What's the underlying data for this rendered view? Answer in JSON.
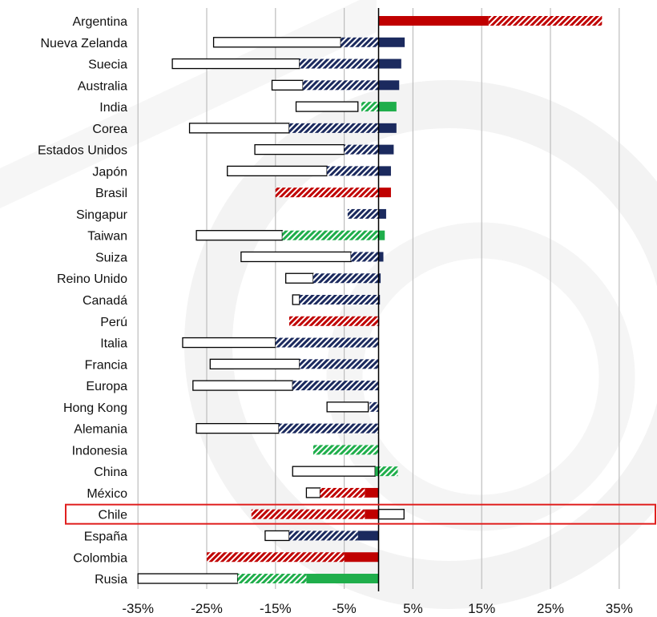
{
  "chart_data": {
    "type": "bar",
    "orientation": "horizontal",
    "title": "",
    "xlabel": "",
    "ylabel": "",
    "xlim": [
      -35,
      39
    ],
    "tick_labels": [
      "-35%",
      "-25%",
      "-15%",
      "-5%",
      "5%",
      "15%",
      "25%",
      "35%"
    ],
    "grid": true,
    "legend": "none",
    "highlighted_category": "Chile",
    "colors": {
      "navy": "#1b2a5e",
      "red": "#c00000",
      "green": "#1fae4b",
      "outline": "#000000",
      "highlight": "#e0201f",
      "grid": "#bdbdbd"
    },
    "categories": [
      "Argentina",
      "Nueva Zelanda",
      "Suecia",
      "Australia",
      "India",
      "Corea",
      "Estados Unidos",
      "Japón",
      "Brasil",
      "Singapur",
      "Taiwan",
      "Suiza",
      "Reino Unido",
      "Canadá",
      "Perú",
      "Italia",
      "Francia",
      "Europa",
      "Hong Kong",
      "Alemania",
      "Indonesia",
      "China",
      "México",
      "Chile",
      "España",
      "Colombia",
      "Rusia"
    ],
    "series": [
      {
        "style": "outline",
        "description_ranges": true,
        "ranges": [
          null,
          [
            -24,
            -5.5
          ],
          [
            -30,
            -11.5
          ],
          [
            -15.5,
            -11
          ],
          [
            -12,
            -3
          ],
          [
            -27.5,
            -13
          ],
          [
            -18,
            -5
          ],
          [
            -22,
            -7.5
          ],
          null,
          null,
          [
            -26.5,
            -14
          ],
          [
            -20,
            -4
          ],
          [
            -13.5,
            -9.5
          ],
          [
            -12.5,
            -11.5
          ],
          null,
          [
            -28.5,
            -15
          ],
          [
            -24.5,
            -11.5
          ],
          [
            -27,
            -12.5
          ],
          [
            -7.5,
            -1.5
          ],
          [
            -26.5,
            -14.5
          ],
          null,
          [
            -12.5,
            -0.5
          ],
          [
            -10.5,
            -8.5
          ],
          [
            0,
            3.7
          ],
          [
            -16.5,
            -13
          ],
          null,
          [
            -35,
            -20.5
          ]
        ]
      },
      {
        "style": "hatched",
        "colors": [
          "red",
          "navy",
          "navy",
          "navy",
          "green",
          "navy",
          "navy",
          "navy",
          "red",
          "navy",
          "green",
          "navy",
          "navy",
          "navy",
          "red",
          "navy",
          "navy",
          "navy",
          "navy",
          "navy",
          "green",
          "green",
          "red",
          "red",
          "navy",
          "red",
          "green"
        ],
        "ranges": [
          [
            16,
            32.5
          ],
          [
            -5.5,
            0
          ],
          [
            -11.5,
            0
          ],
          [
            -11,
            0
          ],
          [
            -2.5,
            0
          ],
          [
            -13,
            0
          ],
          [
            -5,
            0
          ],
          [
            -7.5,
            0
          ],
          [
            -15,
            0
          ],
          [
            -4.5,
            0
          ],
          [
            -14,
            0
          ],
          [
            -4,
            0
          ],
          [
            -9.5,
            0
          ],
          [
            -11.5,
            0
          ],
          [
            -13,
            0
          ],
          [
            -15,
            0
          ],
          [
            -11.5,
            0
          ],
          [
            -12.5,
            0
          ],
          [
            -1.3,
            0
          ],
          [
            -14.5,
            0
          ],
          [
            -9.5,
            0
          ],
          [
            0,
            2.8
          ],
          [
            -8.5,
            -2
          ],
          [
            -18.5,
            -2
          ],
          [
            -13,
            -3
          ],
          [
            -25,
            -5
          ],
          [
            -20.5,
            -10.5
          ]
        ]
      },
      {
        "style": "solid",
        "colors": [
          "red",
          "navy",
          "navy",
          "navy",
          "green",
          "navy",
          "navy",
          "navy",
          "red",
          "navy",
          "green",
          "navy",
          "navy",
          "navy",
          "red",
          "navy",
          "navy",
          "navy",
          "navy",
          "navy",
          "green",
          "green",
          "red",
          "red",
          "navy",
          "red",
          "green"
        ],
        "ranges": [
          [
            0,
            16
          ],
          [
            0,
            3.8
          ],
          [
            0,
            3.3
          ],
          [
            0,
            3
          ],
          [
            0,
            2.6
          ],
          [
            0,
            2.6
          ],
          [
            0,
            2.2
          ],
          [
            0,
            1.8
          ],
          [
            0,
            1.8
          ],
          [
            0,
            1.1
          ],
          [
            0,
            0.9
          ],
          [
            0,
            0.7
          ],
          [
            0,
            0.3
          ],
          [
            0,
            0.2
          ],
          [
            0,
            0.1
          ],
          [
            0,
            0
          ],
          [
            0,
            0
          ],
          [
            0,
            0
          ],
          [
            0,
            0
          ],
          [
            0,
            0
          ],
          [
            0,
            0
          ],
          [
            -0.5,
            0
          ],
          [
            -2,
            0
          ],
          [
            -2,
            0
          ],
          [
            -3,
            0
          ],
          [
            -5,
            0
          ],
          [
            -10.5,
            0
          ]
        ]
      }
    ]
  }
}
